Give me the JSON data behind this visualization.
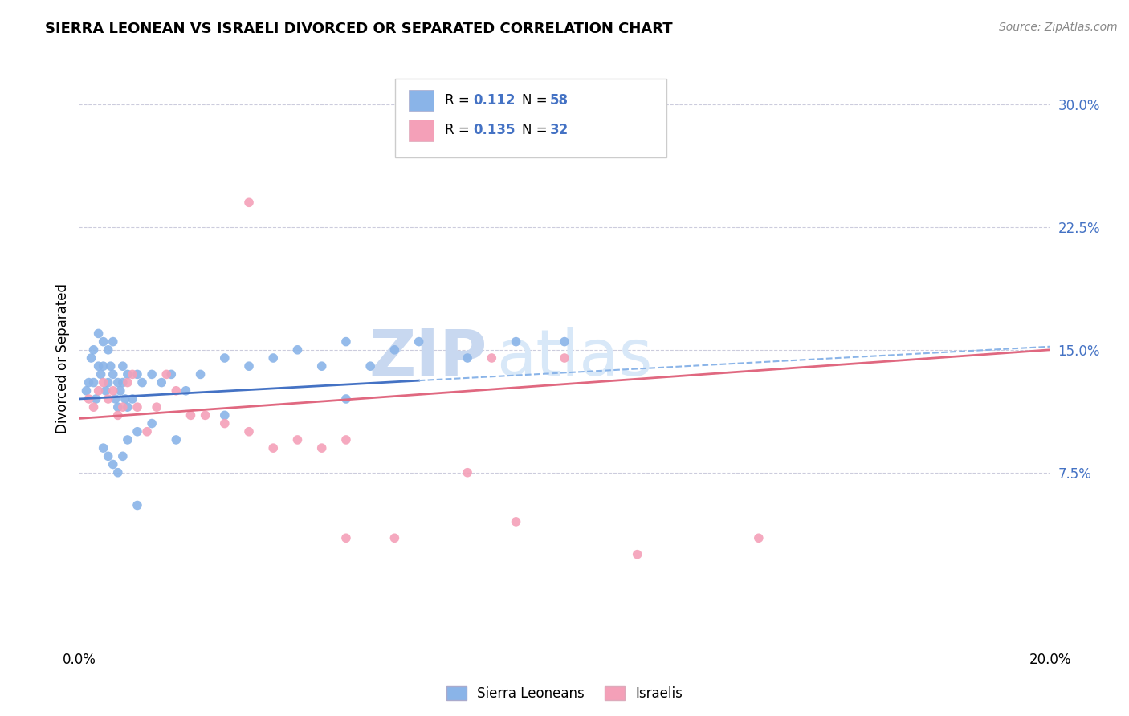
{
  "title": "SIERRA LEONEAN VS ISRAELI DIVORCED OR SEPARATED CORRELATION CHART",
  "source_text": "Source: ZipAtlas.com",
  "ylabel": "Divorced or Separated",
  "xlim": [
    0.0,
    20.0
  ],
  "ylim": [
    -3.0,
    32.0
  ],
  "yticks_right": [
    7.5,
    15.0,
    22.5,
    30.0
  ],
  "ytick_labels_right": [
    "7.5%",
    "15.0%",
    "22.5%",
    "30.0%"
  ],
  "blue_color": "#8ab4e8",
  "pink_color": "#f4a0b8",
  "blue_line_color": "#4472c4",
  "pink_line_color": "#e06880",
  "dashed_line_color": "#8ab4e8",
  "text_blue": "#4472c4",
  "background_color": "#ffffff",
  "blue_line_x0": 0.0,
  "blue_line_y0": 12.0,
  "blue_line_x1": 20.0,
  "blue_line_y1": 15.2,
  "blue_solid_end_x": 7.0,
  "pink_line_x0": 0.0,
  "pink_line_y0": 10.8,
  "pink_line_x1": 20.0,
  "pink_line_y1": 15.0,
  "sierra_x": [
    0.15,
    0.2,
    0.25,
    0.3,
    0.3,
    0.35,
    0.4,
    0.4,
    0.45,
    0.5,
    0.5,
    0.55,
    0.6,
    0.6,
    0.65,
    0.7,
    0.7,
    0.75,
    0.8,
    0.8,
    0.85,
    0.9,
    0.9,
    0.95,
    1.0,
    1.0,
    1.1,
    1.2,
    1.3,
    1.5,
    1.7,
    1.9,
    2.2,
    2.5,
    3.0,
    3.5,
    4.0,
    4.5,
    5.0,
    5.5,
    6.0,
    6.5,
    7.0,
    8.0,
    9.0,
    10.0,
    0.5,
    0.6,
    0.7,
    0.8,
    0.9,
    1.0,
    1.2,
    1.5,
    2.0,
    3.0,
    5.5,
    1.2
  ],
  "sierra_y": [
    12.5,
    13.0,
    14.5,
    13.0,
    15.0,
    12.0,
    14.0,
    16.0,
    13.5,
    14.0,
    15.5,
    12.5,
    13.0,
    15.0,
    14.0,
    13.5,
    15.5,
    12.0,
    11.5,
    13.0,
    12.5,
    14.0,
    13.0,
    12.0,
    13.5,
    11.5,
    12.0,
    13.5,
    13.0,
    13.5,
    13.0,
    13.5,
    12.5,
    13.5,
    14.5,
    14.0,
    14.5,
    15.0,
    14.0,
    15.5,
    14.0,
    15.0,
    15.5,
    14.5,
    15.5,
    15.5,
    9.0,
    8.5,
    8.0,
    7.5,
    8.5,
    9.5,
    10.0,
    10.5,
    9.5,
    11.0,
    12.0,
    5.5
  ],
  "israeli_x": [
    0.2,
    0.3,
    0.4,
    0.5,
    0.6,
    0.7,
    0.8,
    0.9,
    1.0,
    1.1,
    1.2,
    1.4,
    1.6,
    1.8,
    2.0,
    2.3,
    2.6,
    3.0,
    3.5,
    4.0,
    4.5,
    5.0,
    5.5,
    6.5,
    8.5,
    9.0,
    10.0,
    11.5,
    14.0,
    3.5,
    5.5,
    8.0
  ],
  "israeli_y": [
    12.0,
    11.5,
    12.5,
    13.0,
    12.0,
    12.5,
    11.0,
    11.5,
    13.0,
    13.5,
    11.5,
    10.0,
    11.5,
    13.5,
    12.5,
    11.0,
    11.0,
    10.5,
    10.0,
    9.0,
    9.5,
    9.0,
    9.5,
    3.5,
    14.5,
    4.5,
    14.5,
    2.5,
    3.5,
    24.0,
    3.5,
    7.5
  ]
}
